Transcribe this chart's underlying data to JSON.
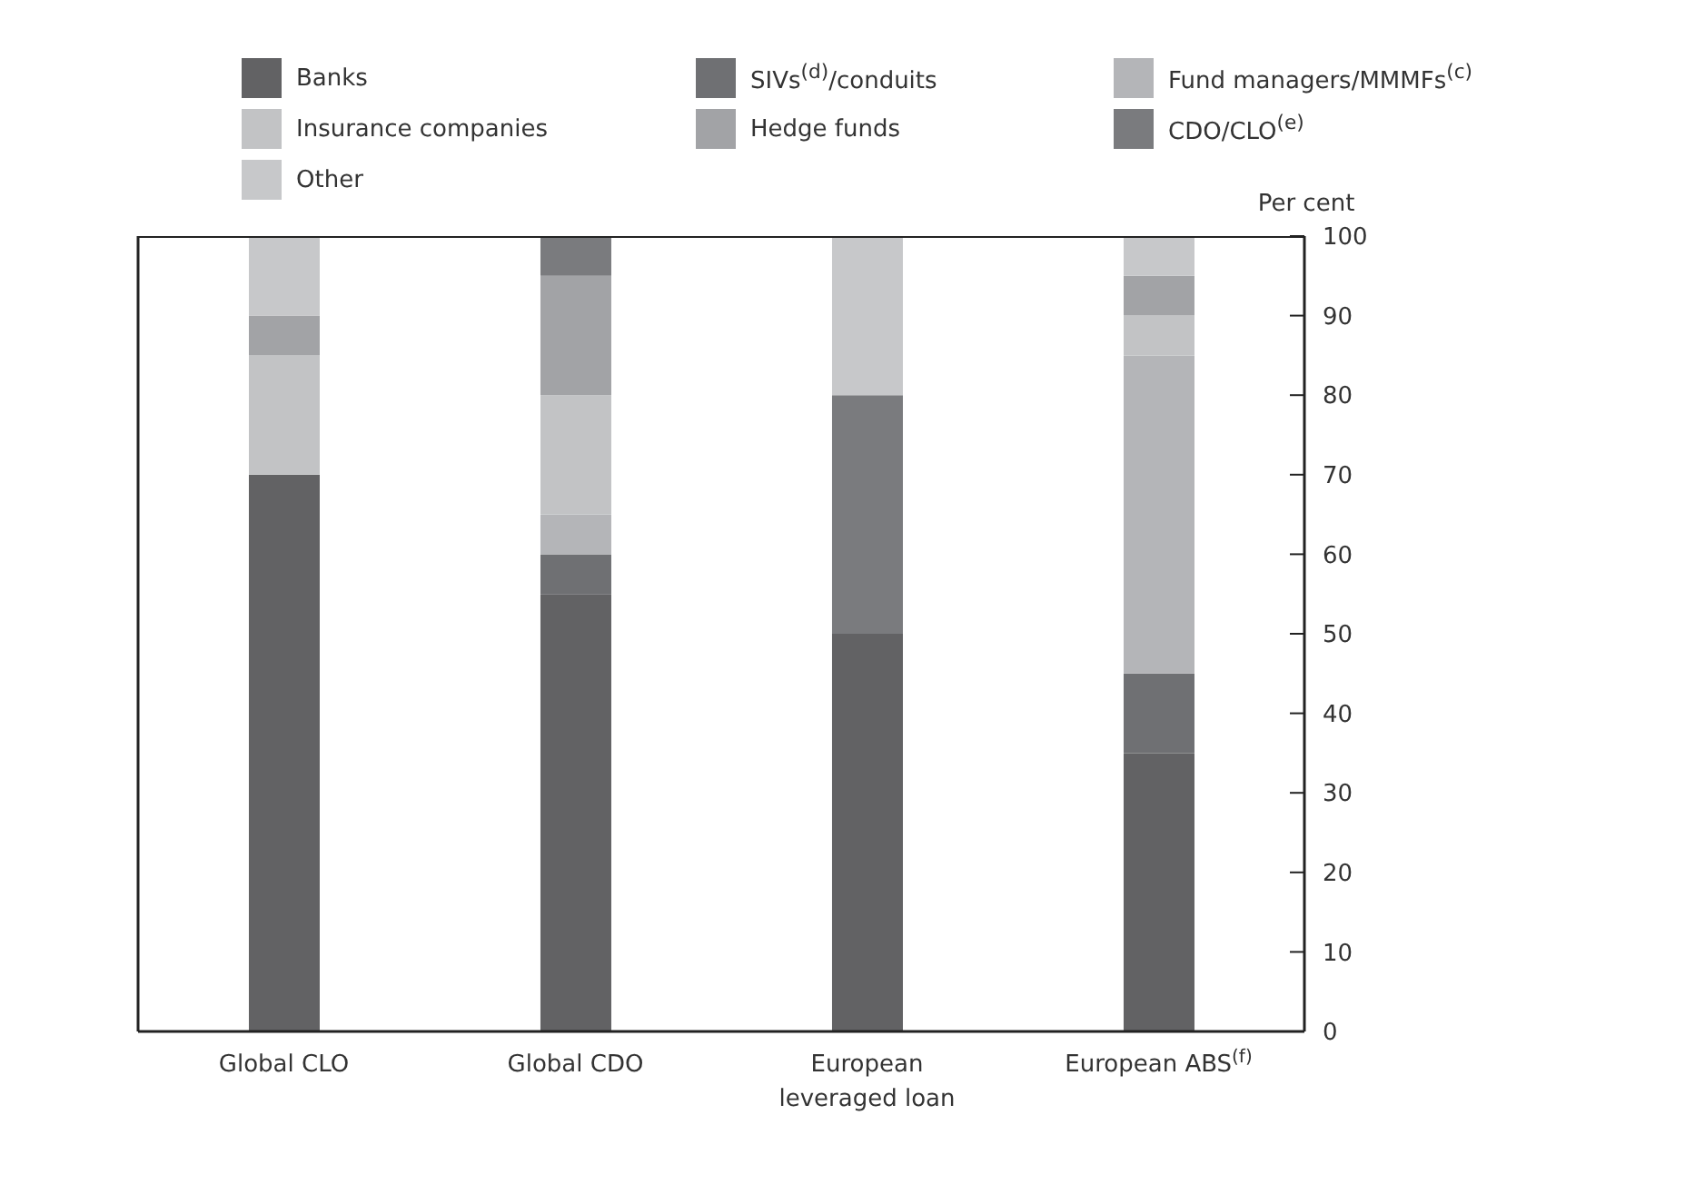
{
  "chart_data": {
    "type": "bar",
    "stacked": true,
    "ylabel": "Per cent",
    "categories": [
      "Global CLO",
      "Global CDO",
      "European leveraged loan",
      "European ABS$^{(f)}$"
    ],
    "series": [
      {
        "name": "Banks",
        "color": "#626264",
        "values": [
          70,
          55,
          50,
          35
        ]
      },
      {
        "name": "SIVs$^{(d)}$/conduits",
        "color": "#6f7073",
        "values": [
          0,
          5,
          0,
          10
        ]
      },
      {
        "name": "Fund managers/MMMFs$^{(c)}$",
        "color": "#b4b5b8",
        "values": [
          0,
          5,
          0,
          40
        ]
      },
      {
        "name": "Insurance companies",
        "color": "#c2c3c5",
        "values": [
          15,
          15,
          0,
          5
        ]
      },
      {
        "name": "Hedge funds",
        "color": "#a2a3a6",
        "values": [
          5,
          15,
          0,
          5
        ]
      },
      {
        "name": "CDO/CLO$^{(e)}$",
        "color": "#7a7b7e",
        "values": [
          0,
          5,
          30,
          0
        ]
      },
      {
        "name": "Other",
        "color": "#c7c8ca",
        "values": [
          10,
          0,
          20,
          5
        ]
      }
    ],
    "ylim": [
      0,
      100
    ],
    "yticks": [
      0,
      10,
      20,
      30,
      40,
      50,
      60,
      70,
      80,
      90,
      100
    ],
    "grid": false,
    "legend": "top"
  }
}
